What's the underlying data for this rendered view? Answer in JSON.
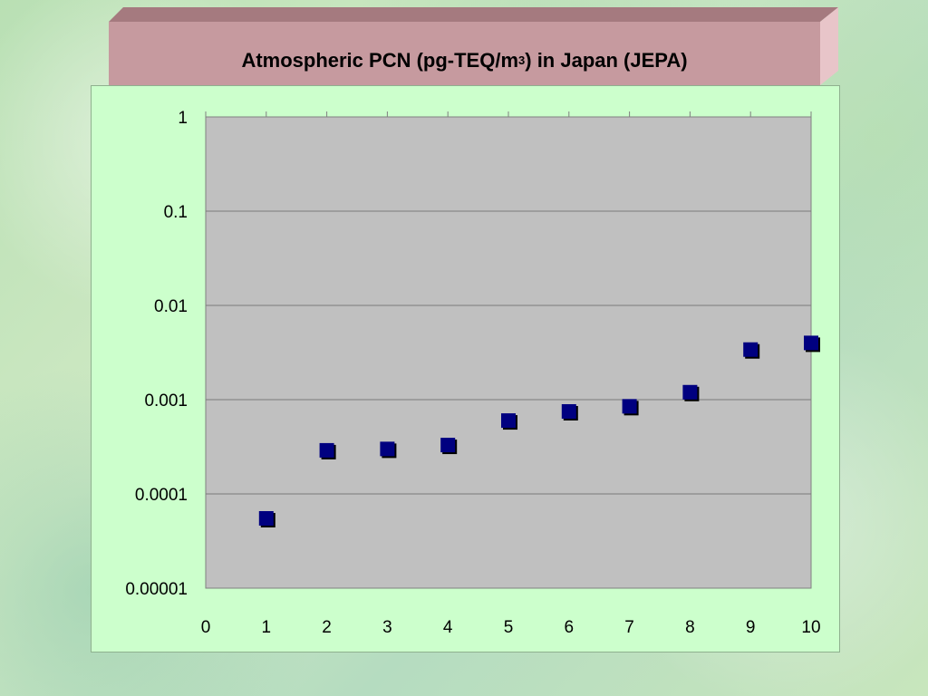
{
  "slide": {
    "title_main": "Atmospheric PCN  (pg-TEQ/m",
    "title_sup": "3",
    "title_tail": ") in Japan (JEPA)"
  },
  "colors": {
    "title_fill": "#c69a9f",
    "title_top": "#a57a7f",
    "title_side": "#e8c5c9",
    "panel_bg": "#ccffcc",
    "plot_bg": "#c0c0c0",
    "marker": "#000080",
    "marker_shadow": "#000000"
  },
  "chart_data": {
    "type": "scatter",
    "title": "Atmospheric PCN  (pg-TEQ/m3) in Japan (JEPA)",
    "xlabel": "",
    "ylabel": "",
    "xlim": [
      0,
      10
    ],
    "ylim": [
      1e-05,
      1
    ],
    "yscale": "log",
    "x_ticks": [
      "0",
      "1",
      "2",
      "3",
      "4",
      "5",
      "6",
      "7",
      "8",
      "9",
      "10"
    ],
    "y_ticks": [
      "1",
      "0.1",
      "0.01",
      "0.001",
      "0.0001",
      "0.00001"
    ],
    "grid": "horizontal",
    "legend": "none",
    "marker": "square",
    "points": [
      {
        "x": 1,
        "y": 5.5e-05
      },
      {
        "x": 2,
        "y": 0.00029
      },
      {
        "x": 3,
        "y": 0.0003
      },
      {
        "x": 4,
        "y": 0.00033
      },
      {
        "x": 5,
        "y": 0.0006
      },
      {
        "x": 6,
        "y": 0.00075
      },
      {
        "x": 7,
        "y": 0.00085
      },
      {
        "x": 8,
        "y": 0.0012
      },
      {
        "x": 9,
        "y": 0.0034
      },
      {
        "x": 10,
        "y": 0.004
      }
    ]
  }
}
